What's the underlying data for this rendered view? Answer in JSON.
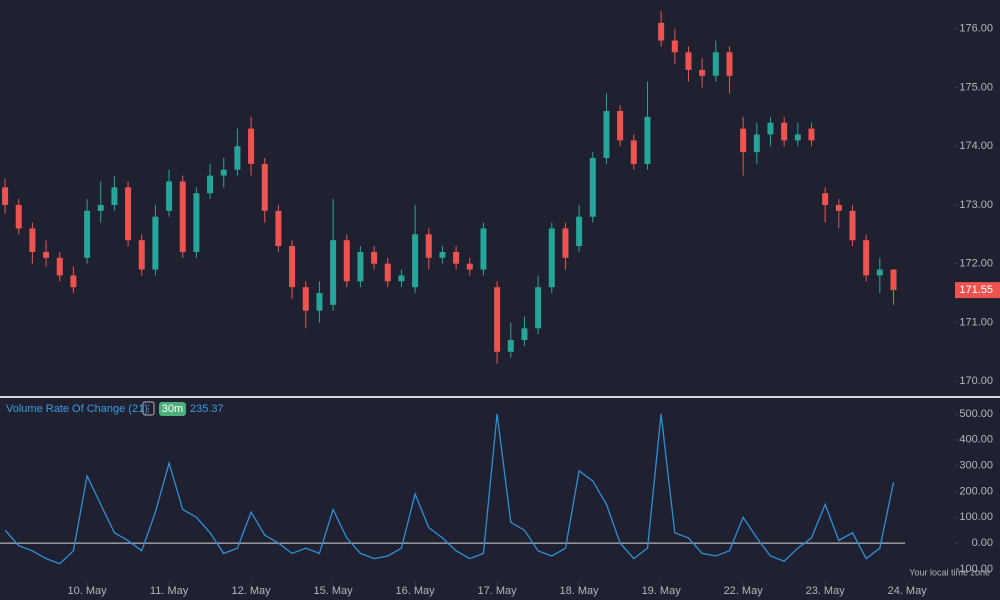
{
  "chart_data": [
    {
      "type": "candlestick",
      "x": [
        0,
        1,
        2,
        3,
        4,
        5,
        6,
        7,
        8,
        9,
        10,
        11,
        12,
        13,
        14,
        15,
        16,
        17,
        18,
        19,
        20,
        21,
        22,
        23,
        24,
        25,
        26,
        27,
        28,
        29,
        30,
        31,
        32,
        33,
        34,
        35,
        36,
        37,
        38,
        39,
        40,
        41,
        42,
        43,
        44,
        45,
        46,
        47,
        48,
        49,
        50,
        51,
        52,
        53,
        54,
        55,
        56,
        57,
        58,
        59,
        60,
        61,
        62,
        63,
        64,
        65
      ],
      "open": [
        173.3,
        173.0,
        172.6,
        172.2,
        172.1,
        171.8,
        172.1,
        172.9,
        173.0,
        173.3,
        172.4,
        171.9,
        172.9,
        173.4,
        172.2,
        173.2,
        173.5,
        173.6,
        174.3,
        173.7,
        172.9,
        172.3,
        171.6,
        171.2,
        171.3,
        172.4,
        171.7,
        172.2,
        172.0,
        171.7,
        171.6,
        172.5,
        172.1,
        172.2,
        172.0,
        171.9,
        171.6,
        170.5,
        170.7,
        170.9,
        171.6,
        172.6,
        172.3,
        172.8,
        173.8,
        174.6,
        174.1,
        173.7,
        176.1,
        175.8,
        175.6,
        175.3,
        175.2,
        175.6,
        174.3,
        173.9,
        174.2,
        174.4,
        174.1,
        174.3,
        173.2,
        173.0,
        172.9,
        172.4,
        171.8,
        171.9
      ],
      "high": [
        173.45,
        173.1,
        172.7,
        172.4,
        172.2,
        171.95,
        173.1,
        173.4,
        173.5,
        173.4,
        172.5,
        173.0,
        173.6,
        173.5,
        173.3,
        173.7,
        173.8,
        174.3,
        174.5,
        173.8,
        173.0,
        172.4,
        171.7,
        171.7,
        173.1,
        172.5,
        172.3,
        172.3,
        172.1,
        171.9,
        173.0,
        172.6,
        172.3,
        172.3,
        172.1,
        172.7,
        171.7,
        171.0,
        171.1,
        171.8,
        172.7,
        172.7,
        173.0,
        173.9,
        174.9,
        174.7,
        174.2,
        175.1,
        176.3,
        176.0,
        175.7,
        175.5,
        175.8,
        175.7,
        174.5,
        174.4,
        174.5,
        174.5,
        174.4,
        174.4,
        173.3,
        173.1,
        173.0,
        172.5,
        172.1,
        171.9
      ],
      "low": [
        172.85,
        172.5,
        172.0,
        171.95,
        171.7,
        171.5,
        172.0,
        172.7,
        172.9,
        172.3,
        171.8,
        171.8,
        172.8,
        172.1,
        172.1,
        173.1,
        173.3,
        173.5,
        173.5,
        172.7,
        172.2,
        171.4,
        170.9,
        171.0,
        171.2,
        171.6,
        171.6,
        171.9,
        171.6,
        171.6,
        171.5,
        171.9,
        172.0,
        171.9,
        171.8,
        171.8,
        170.3,
        170.4,
        170.6,
        170.8,
        171.5,
        171.9,
        172.2,
        172.7,
        173.7,
        174.0,
        173.6,
        173.6,
        175.7,
        175.4,
        175.1,
        175.0,
        175.1,
        174.9,
        173.5,
        173.7,
        174.0,
        174.0,
        174.0,
        174.0,
        172.7,
        172.6,
        172.3,
        171.7,
        171.5,
        171.3
      ],
      "close": [
        173.0,
        172.6,
        172.2,
        172.1,
        171.8,
        171.6,
        172.9,
        173.0,
        173.3,
        172.4,
        171.9,
        172.8,
        173.4,
        172.2,
        173.2,
        173.5,
        173.6,
        174.0,
        173.7,
        172.9,
        172.3,
        171.6,
        171.2,
        171.5,
        172.4,
        171.7,
        172.2,
        172.0,
        171.7,
        171.8,
        172.5,
        172.1,
        172.2,
        172.0,
        171.9,
        172.6,
        170.5,
        170.7,
        170.9,
        171.6,
        172.6,
        172.1,
        172.8,
        173.8,
        174.6,
        174.1,
        173.7,
        174.5,
        175.8,
        175.6,
        175.3,
        175.2,
        175.6,
        175.2,
        173.9,
        174.2,
        174.4,
        174.1,
        174.2,
        174.1,
        173.0,
        172.9,
        172.4,
        171.8,
        171.9,
        171.55
      ],
      "up_color": "#26a69a",
      "down_color": "#ef5350",
      "xlim": [
        -0.37,
        69.5
      ],
      "ylim": [
        169.73,
        176.49
      ],
      "yticks": [
        {
          "value": 170,
          "label": "170.00"
        },
        {
          "value": 171,
          "label": "171.00"
        },
        {
          "value": 172,
          "label": "172.00"
        },
        {
          "value": 173,
          "label": "173.00"
        },
        {
          "value": 174,
          "label": "174.00"
        },
        {
          "value": 175,
          "label": "175.00"
        },
        {
          "value": 176,
          "label": "176.00"
        }
      ]
    },
    {
      "type": "line",
      "title": "Volume Rate Of Change (21)",
      "interval": "30m",
      "color": "#2f8fd6",
      "x": [
        0,
        1,
        2,
        3,
        4,
        5,
        6,
        7,
        8,
        9,
        10,
        11,
        12,
        13,
        14,
        15,
        16,
        17,
        18,
        19,
        20,
        21,
        22,
        23,
        24,
        25,
        26,
        27,
        28,
        29,
        30,
        31,
        32,
        33,
        34,
        35,
        36,
        37,
        38,
        39,
        40,
        41,
        42,
        43,
        44,
        45,
        46,
        47,
        48,
        49,
        50,
        51,
        52,
        53,
        54,
        55,
        56,
        57,
        58,
        59,
        60,
        61,
        62,
        63,
        64,
        65
      ],
      "values": [
        50,
        -10,
        -30,
        -60,
        -80,
        -30,
        260,
        150,
        40,
        10,
        -30,
        120,
        310,
        130,
        100,
        40,
        -40,
        -20,
        120,
        30,
        0,
        -40,
        -20,
        -40,
        130,
        20,
        -40,
        -60,
        -50,
        -20,
        190,
        60,
        20,
        -30,
        -60,
        -40,
        500,
        80,
        50,
        -30,
        -50,
        -20,
        280,
        240,
        150,
        0,
        -60,
        -20,
        500,
        40,
        20,
        -40,
        -50,
        -30,
        100,
        20,
        -50,
        -70,
        -20,
        20,
        150,
        10,
        40,
        -60,
        -20,
        235.37
      ],
      "hline": 0,
      "xlim": [
        -0.37,
        69.5
      ],
      "ylim": [
        -143,
        562
      ],
      "yticks": [
        {
          "value": -100,
          "label": "-100.00"
        },
        {
          "value": 0,
          "label": "0.00"
        },
        {
          "value": 100,
          "label": "100.00"
        },
        {
          "value": 200,
          "label": "200.00"
        },
        {
          "value": 300,
          "label": "300.00"
        },
        {
          "value": 400,
          "label": "400.00"
        },
        {
          "value": 500,
          "label": "500.00"
        }
      ],
      "xticks": [
        {
          "value": 6,
          "label": "10. May"
        },
        {
          "value": 12,
          "label": "11. May"
        },
        {
          "value": 18,
          "label": "12. May"
        },
        {
          "value": 24,
          "label": "15. May"
        },
        {
          "value": 30,
          "label": "16. May"
        },
        {
          "value": 36,
          "label": "17. May"
        },
        {
          "value": 42,
          "label": "18. May"
        },
        {
          "value": 48,
          "label": "19. May"
        },
        {
          "value": 54,
          "label": "22. May"
        },
        {
          "value": 60,
          "label": "23. May"
        },
        {
          "value": 66,
          "label": "24. May"
        }
      ],
      "timezone_label": "Your local time zone"
    }
  ]
}
